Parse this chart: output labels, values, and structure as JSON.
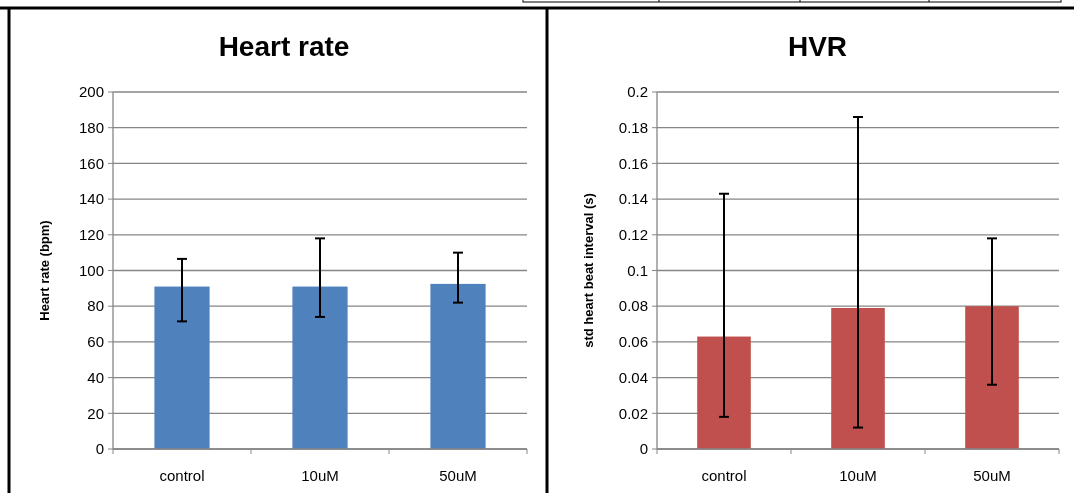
{
  "chart_data": [
    {
      "type": "bar",
      "title": "Heart rate",
      "ylabel": "Heart rate (bpm)",
      "categories": [
        "control",
        "10uM",
        "50uM"
      ],
      "ylim": [
        0,
        200
      ],
      "yticks": [
        0,
        20,
        40,
        60,
        80,
        100,
        120,
        140,
        160,
        180,
        200
      ],
      "grid": "y",
      "series": [
        {
          "color": "#4f81bd",
          "values": [
            91,
            91,
            92.5
          ],
          "errors": [
            [
              71.5,
              106.5
            ],
            [
              74,
              118
            ],
            [
              82,
              110
            ]
          ]
        }
      ]
    },
    {
      "type": "bar",
      "title": "HVR",
      "ylabel": "std heart beat interval (s)",
      "categories": [
        "control",
        "10uM",
        "50uM"
      ],
      "ylim": [
        0,
        0.2
      ],
      "yticks": [
        0,
        0.02,
        0.04,
        0.06,
        0.08,
        0.1,
        0.12,
        0.14,
        0.16,
        0.18,
        0.2
      ],
      "grid": "y",
      "series": [
        {
          "color": "#c0504d",
          "values": [
            0.063,
            0.079,
            0.08
          ],
          "errors": [
            [
              0.018,
              0.143
            ],
            [
              0.012,
              0.186
            ],
            [
              0.036,
              0.118
            ]
          ]
        }
      ]
    }
  ]
}
